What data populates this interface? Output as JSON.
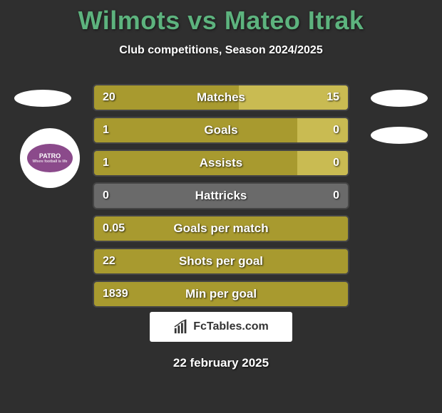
{
  "title": "Wilmots vs Mateo Itrak",
  "subtitle": "Club competitions, Season 2024/2025",
  "date": "22 february 2025",
  "watermark": "FcTables.com",
  "clubbadge_text": "PATRO",
  "clubbadge_sub": "Where football is life",
  "colors": {
    "title": "#5db37e",
    "background": "#2f2f2f",
    "bar_left": "#a89a2f",
    "bar_right": "#c9bb52",
    "bar_empty_bg": "#6a6a6a",
    "text": "#ffffff",
    "flag": "#ffffff",
    "badge_inner": "#8b4a8b"
  },
  "bars": [
    {
      "label": "Matches",
      "left_value": "20",
      "right_value": "15",
      "left_pct": 57,
      "right_pct": 43
    },
    {
      "label": "Goals",
      "left_value": "1",
      "right_value": "0",
      "left_pct": 80,
      "right_pct": 20
    },
    {
      "label": "Assists",
      "left_value": "1",
      "right_value": "0",
      "left_pct": 80,
      "right_pct": 20
    },
    {
      "label": "Hattricks",
      "left_value": "0",
      "right_value": "0",
      "left_pct": 0,
      "right_pct": 0
    },
    {
      "label": "Goals per match",
      "left_value": "0.05",
      "right_value": "",
      "left_pct": 100,
      "right_pct": 0
    },
    {
      "label": "Shots per goal",
      "left_value": "22",
      "right_value": "",
      "left_pct": 100,
      "right_pct": 0
    },
    {
      "label": "Min per goal",
      "left_value": "1839",
      "right_value": "",
      "left_pct": 100,
      "right_pct": 0
    }
  ]
}
